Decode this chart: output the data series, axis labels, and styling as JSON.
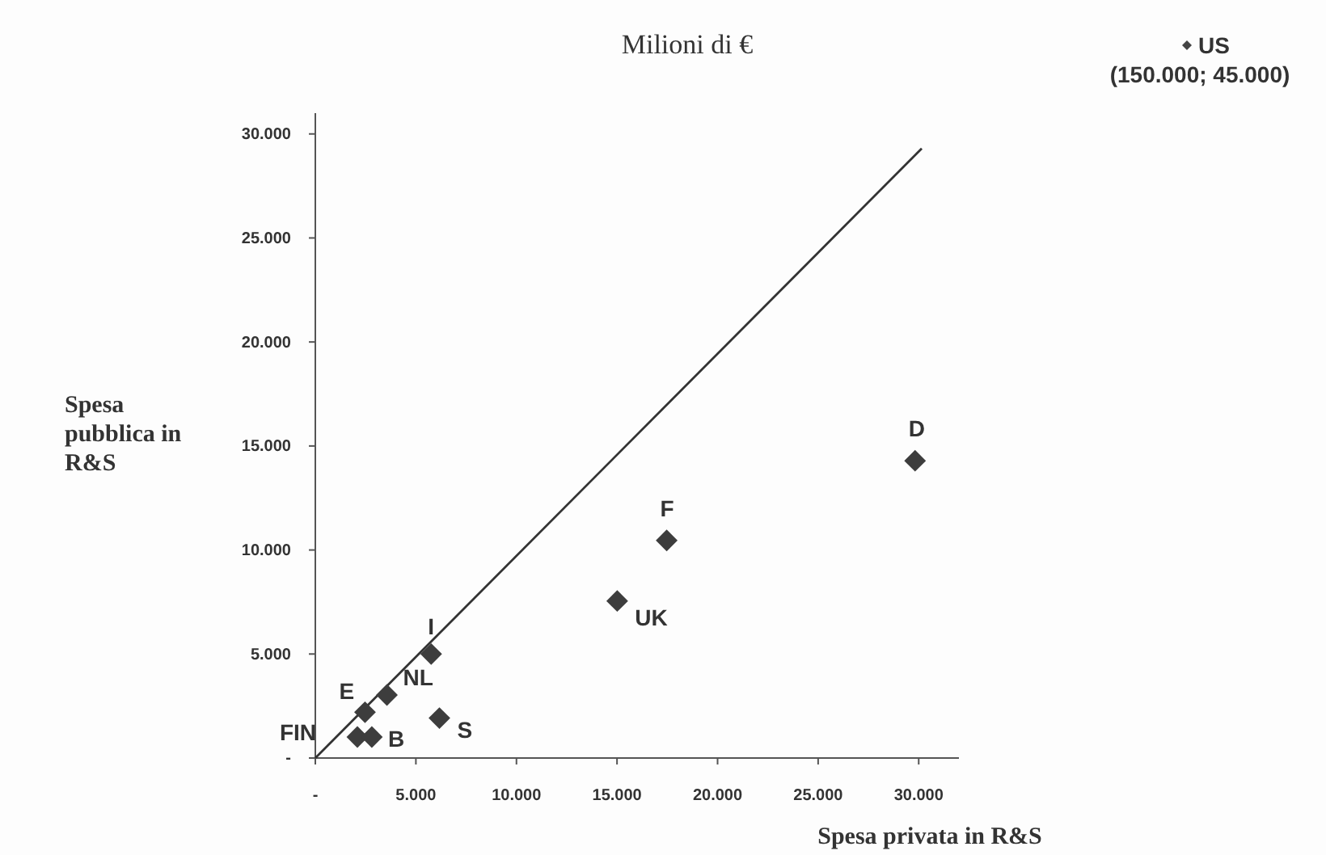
{
  "chart_data": {
    "type": "scatter",
    "title": "Milioni di €",
    "xlabel": "Spesa privata in R&S",
    "ylabel": "Spesa pubblica in R&S",
    "xlim": [
      0,
      32000
    ],
    "ylim": [
      0,
      31000
    ],
    "xticks": [
      {
        "value": 0,
        "label": "-"
      },
      {
        "value": 5000,
        "label": "5.000"
      },
      {
        "value": 10000,
        "label": "10.000"
      },
      {
        "value": 15000,
        "label": "15.000"
      },
      {
        "value": 20000,
        "label": "20.000"
      },
      {
        "value": 25000,
        "label": "25.000"
      },
      {
        "value": 30000,
        "label": "30.000"
      }
    ],
    "yticks": [
      {
        "value": 0,
        "label": "-"
      },
      {
        "value": 5000,
        "label": "5.000"
      },
      {
        "value": 10000,
        "label": "10.000"
      },
      {
        "value": 15000,
        "label": "15.000"
      },
      {
        "value": 20000,
        "label": "20.000"
      },
      {
        "value": 25000,
        "label": "25.000"
      },
      {
        "value": 30000,
        "label": "30.000"
      }
    ],
    "grid": false,
    "marker": "diamond",
    "series": [
      {
        "type": "line",
        "color": "#333333",
        "marker": "none",
        "line_style": "solid",
        "x": [
          0,
          30150
        ],
        "values": [
          0,
          29300
        ]
      },
      {
        "name": "FIN",
        "color": "#3d3d3d",
        "x": [
          2090
        ],
        "values": [
          1010
        ]
      },
      {
        "name": "B",
        "color": "#3d3d3d",
        "x": [
          2810
        ],
        "values": [
          1010
        ]
      },
      {
        "name": "E",
        "color": "#3d3d3d",
        "x": [
          2470
        ],
        "values": [
          2200
        ]
      },
      {
        "name": "NL",
        "color": "#3d3d3d",
        "x": [
          3560
        ],
        "values": [
          3030
        ]
      },
      {
        "name": "I",
        "color": "#3d3d3d",
        "x": [
          5760
        ],
        "values": [
          5000
        ]
      },
      {
        "name": "S",
        "color": "#3d3d3d",
        "x": [
          6170
        ],
        "values": [
          1920
        ]
      },
      {
        "name": "UK",
        "color": "#3d3d3d",
        "x": [
          15010
        ],
        "values": [
          7550
        ]
      },
      {
        "name": "F",
        "color": "#3d3d3d",
        "x": [
          17470
        ],
        "values": [
          10460
        ]
      },
      {
        "name": "D",
        "color": "#3d3d3d",
        "x": [
          29820
        ],
        "values": [
          14290
        ]
      }
    ],
    "annotations": [
      "US",
      "(150.000; 45.000)"
    ]
  }
}
